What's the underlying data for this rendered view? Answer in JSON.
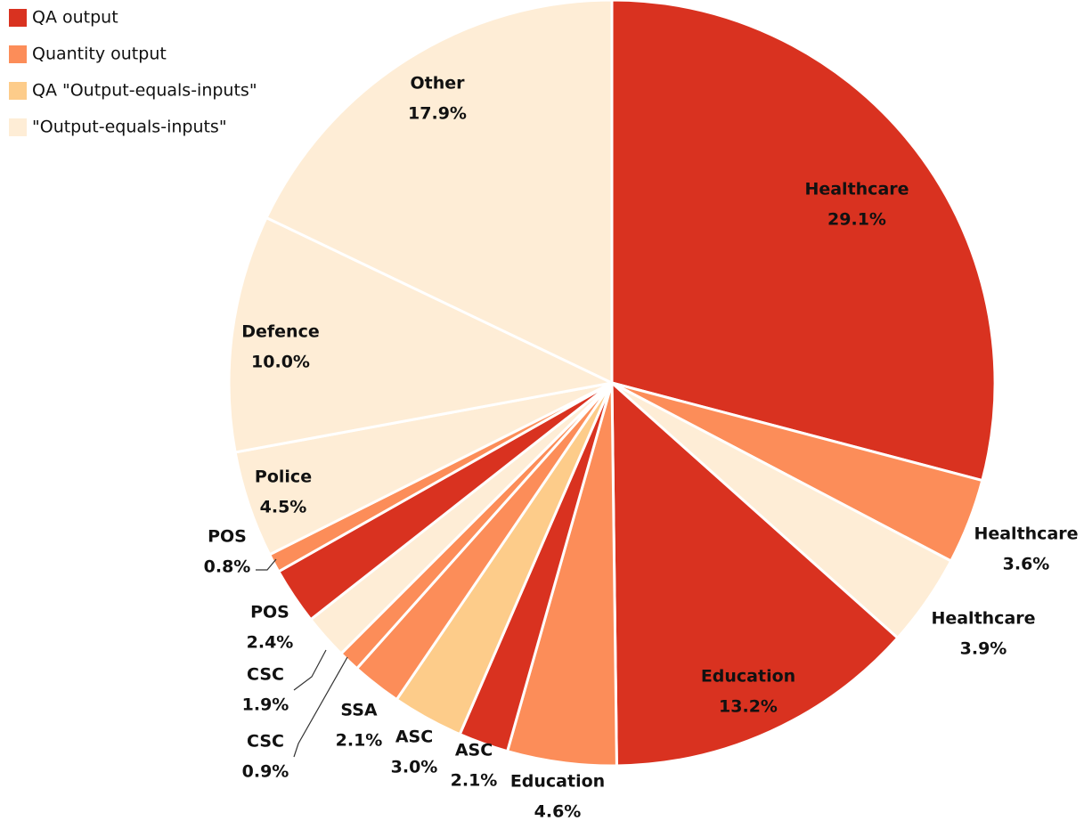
{
  "chart_data": {
    "type": "pie",
    "series": [
      {
        "name": "QA output",
        "color": "#d93220"
      },
      {
        "name": "Quantity output",
        "color": "#fc8d59"
      },
      {
        "name": "QA \"Output-equals-inputs\"",
        "color": "#fdcc8a"
      },
      {
        "name": "\"Output-equals-inputs\"",
        "color": "#feedd6"
      }
    ],
    "categories": [
      "Healthcare",
      "Healthcare",
      "Healthcare",
      "Education",
      "Education",
      "ASC",
      "ASC",
      "SSA",
      "CSC",
      "CSC",
      "POS",
      "POS",
      "Police",
      "Defence",
      "Other"
    ],
    "values": [
      29.1,
      3.6,
      3.9,
      13.2,
      4.6,
      2.1,
      3.0,
      2.1,
      0.9,
      1.9,
      2.4,
      0.8,
      4.5,
      10.0,
      17.9
    ],
    "value_labels": [
      "29.1%",
      "3.6%",
      "3.9%",
      "13.2%",
      "4.6%",
      "2.1%",
      "3.0%",
      "2.1%",
      "0.9%",
      "1.9%",
      "2.4%",
      "0.8%",
      "4.5%",
      "10.0%",
      "17.9%"
    ],
    "slice_series": [
      0,
      1,
      3,
      0,
      1,
      0,
      2,
      1,
      1,
      3,
      0,
      1,
      3,
      3,
      3
    ]
  }
}
